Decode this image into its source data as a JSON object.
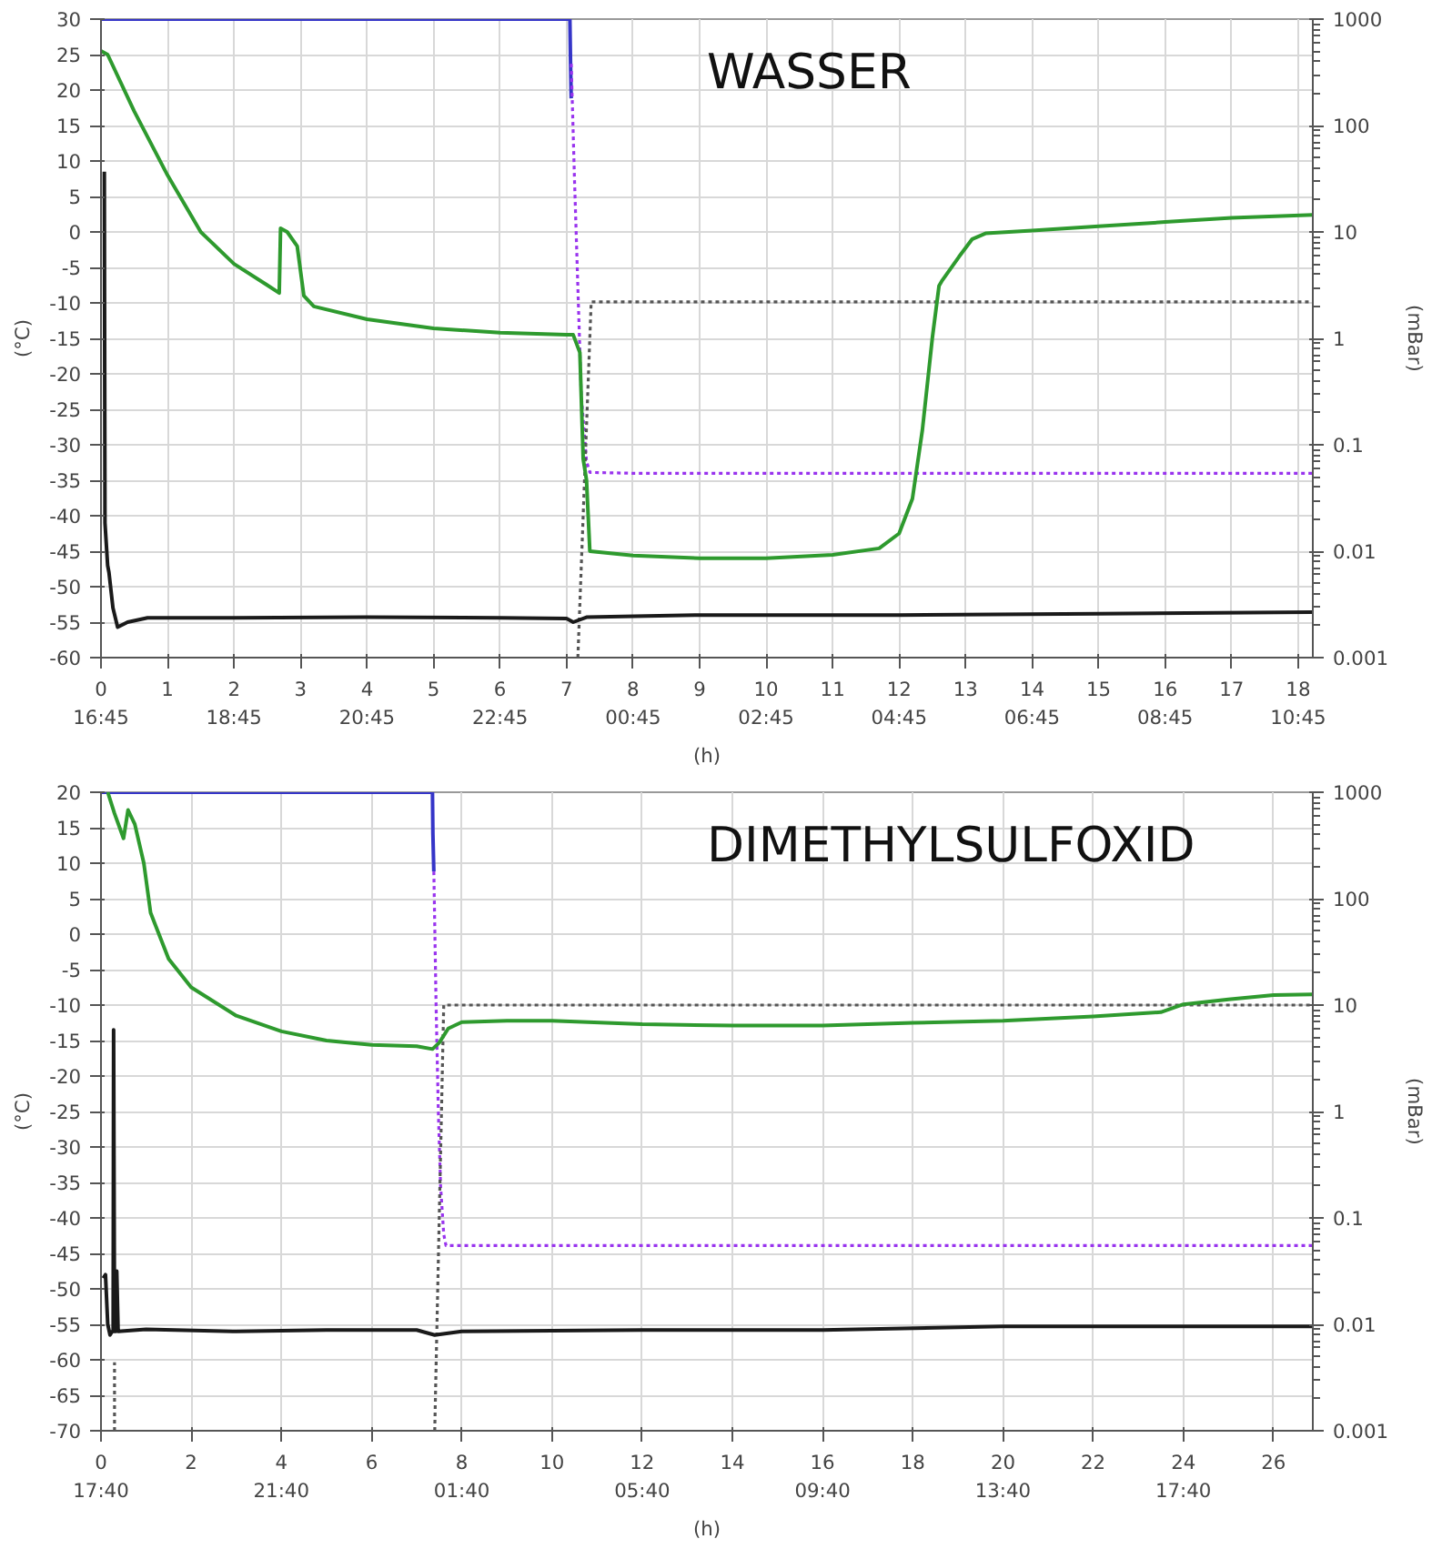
{
  "chart_data": [
    {
      "type": "line",
      "title": "WASSER",
      "ylabel": "(°C)",
      "y2label": "(mBar)",
      "xlabel": "(h)",
      "grid": true,
      "xlim": [
        0,
        18.22
      ],
      "ylim": [
        -60,
        30
      ],
      "y2lim": [
        0.001,
        1000
      ],
      "log": "y2",
      "xticks": [
        {
          "value": 0,
          "label": "0\n16:45"
        },
        1,
        {
          "value": 2,
          "label": "2\n18:45"
        },
        3,
        {
          "value": 4,
          "label": "4\n20:45"
        },
        5,
        {
          "value": 6,
          "label": "6\n22:45"
        },
        7,
        {
          "value": 8,
          "label": "8\n00:45"
        },
        9,
        {
          "value": 10,
          "label": "10\n02:45"
        },
        11,
        {
          "value": 12,
          "label": "12\n04:45"
        },
        13,
        {
          "value": 14,
          "label": "14\n06:45"
        },
        15,
        {
          "value": 16,
          "label": "16\n08:45"
        },
        17,
        {
          "value": 18,
          "label": "18\n10:45"
        }
      ],
      "yticks": [
        -60,
        -55,
        -50,
        -45,
        -40,
        -35,
        -30,
        -25,
        -20,
        -15,
        -10,
        -5,
        0,
        5,
        10,
        15,
        20,
        25,
        30
      ],
      "y2ticks": [
        0.001,
        0.01,
        0.1,
        1,
        10,
        100,
        1000
      ],
      "series": [
        {
          "color": "#3535c8",
          "axis": "y2",
          "line_style": "solid",
          "x": [
            0,
            7.05,
            7.06,
            7.07
          ],
          "values": [
            1000,
            1000,
            380,
            180
          ]
        },
        {
          "color": "#9933ee",
          "axis": "y2",
          "line_style": "dotted",
          "x": [
            7.07,
            7.12,
            7.17,
            7.22,
            7.3,
            7.35,
            8,
            10,
            12,
            14,
            16,
            18.22
          ],
          "values": [
            380,
            30,
            3,
            0.3,
            0.07,
            0.055,
            0.054,
            0.054,
            0.054,
            0.054,
            0.054,
            0.054
          ]
        },
        {
          "color": "#555555",
          "axis": "y2",
          "line_style": "dotted",
          "x": [
            7.17,
            7.37,
            18.22
          ],
          "values": [
            0.001,
            2.2,
            2.2
          ]
        },
        {
          "color": "#1a1a1a",
          "axis": "y",
          "line_style": "solid",
          "x": [
            0.05,
            0.06,
            0.1,
            0.12,
            0.18,
            0.25,
            0.4,
            0.7,
            2,
            4,
            6,
            7,
            7.1,
            7.3,
            9,
            12,
            15,
            18.22
          ],
          "values": [
            8.5,
            -41,
            -47,
            -48,
            -53,
            -55.7,
            -55,
            -54.4,
            -54.4,
            -54.3,
            -54.4,
            -54.5,
            -55,
            -54.3,
            -54,
            -54,
            -53.8,
            -53.6
          ]
        },
        {
          "color": "#2e9a2e",
          "axis": "y",
          "line_style": "solid",
          "x": [
            0,
            0.1,
            0.5,
            1,
            1.5,
            2,
            2.5,
            2.68,
            2.7,
            2.8,
            2.95,
            3.05,
            3.2,
            4,
            5,
            6,
            7,
            7.1,
            7.2,
            7.25,
            7.3,
            7.35,
            8,
            9,
            10,
            11,
            11.7,
            12,
            12.2,
            12.35,
            12.5,
            12.6,
            12.65,
            12.9,
            13.1,
            13.3,
            14,
            15,
            16,
            17,
            18.22
          ],
          "values": [
            25.5,
            25,
            17,
            8,
            0,
            -4.5,
            -7.5,
            -8.6,
            0.5,
            0,
            -2,
            -9,
            -10.5,
            -12.3,
            -13.6,
            -14.2,
            -14.5,
            -14.5,
            -17,
            -32,
            -35,
            -45,
            -45.6,
            -46,
            -46,
            -45.5,
            -44.6,
            -42.5,
            -37.6,
            -27.9,
            -14.9,
            -7.6,
            -6.8,
            -3.5,
            -1,
            -0.2,
            0.2,
            0.8,
            1.4,
            2,
            2.4
          ]
        }
      ]
    },
    {
      "type": "line",
      "title": "DIMETHYLSULFOXID",
      "ylabel": "(°C)",
      "y2label": "(mBar)",
      "xlabel": "(h)",
      "grid": true,
      "xlim": [
        0,
        26.87
      ],
      "ylim": [
        -70,
        20
      ],
      "y2lim": [
        0.001,
        1000
      ],
      "log": "y2",
      "xticks": [
        {
          "value": 0,
          "label": "0\n17:40"
        },
        2,
        {
          "value": 4,
          "label": "4\n21:40"
        },
        6,
        {
          "value": 8,
          "label": "8\n01:40"
        },
        10,
        {
          "value": 12,
          "label": "12\n05:40"
        },
        14,
        {
          "value": 16,
          "label": "16\n09:40"
        },
        18,
        {
          "value": 20,
          "label": "20\n13:40"
        },
        22,
        {
          "value": 24,
          "label": "24\n17:40"
        },
        26
      ],
      "yticks": [
        -70,
        -65,
        -60,
        -55,
        -50,
        -45,
        -40,
        -35,
        -30,
        -25,
        -20,
        -15,
        -10,
        -5,
        0,
        5,
        10,
        15,
        20
      ],
      "y2ticks": [
        0.001,
        0.01,
        0.1,
        1,
        10,
        100,
        1000
      ],
      "series": [
        {
          "color": "#3535c8",
          "axis": "y2",
          "line_style": "solid",
          "x": [
            0,
            7.35,
            7.36,
            7.38
          ],
          "values": [
            1000,
            1000,
            400,
            180
          ]
        },
        {
          "color": "#9933ee",
          "axis": "y2",
          "line_style": "dotted",
          "x": [
            7.38,
            7.43,
            7.48,
            7.53,
            7.6,
            7.65,
            10,
            14,
            18,
            22,
            26.87
          ],
          "values": [
            180,
            10,
            1,
            0.2,
            0.07,
            0.055,
            0.055,
            0.055,
            0.055,
            0.055,
            0.055
          ]
        },
        {
          "color": "#555555",
          "axis": "y2",
          "line_style": "dotted",
          "x": [
            0.3,
            0.3,
            0.31,
            7.4,
            7.6,
            26.87
          ],
          "values": [
            0.001,
            0.0044,
            null,
            0.001,
            10,
            10
          ]
        },
        {
          "color": "#1a1a1a",
          "axis": "y",
          "line_style": "solid",
          "x": [
            0.05,
            0.1,
            0.15,
            0.2,
            0.25,
            0.27,
            0.28,
            0.3,
            0.33,
            0.35,
            0.38,
            1,
            3,
            5,
            7,
            7.4,
            8,
            12,
            16,
            20,
            24,
            26.87
          ],
          "values": [
            -48.5,
            -48,
            -55,
            -56.5,
            -56,
            -56,
            -13.5,
            -56,
            -56,
            -47.5,
            -56,
            -55.7,
            -56,
            -55.8,
            -55.8,
            -56.5,
            -56,
            -55.8,
            -55.8,
            -55.3,
            -55.3,
            -55.3
          ]
        },
        {
          "color": "#2e9a2e",
          "axis": "y",
          "line_style": "solid",
          "x": [
            0.15,
            0.3,
            0.5,
            0.6,
            0.75,
            0.95,
            1.1,
            1.5,
            2,
            3,
            4,
            5,
            6,
            7,
            7.35,
            7.5,
            7.7,
            8,
            9,
            10,
            12,
            14,
            16,
            18,
            20,
            22,
            23.5,
            24,
            25,
            26,
            26.87
          ],
          "values": [
            20,
            17,
            13.5,
            17.5,
            15.5,
            10,
            3,
            -3.5,
            -7.5,
            -11.5,
            -13.7,
            -15,
            -15.6,
            -15.8,
            -16.2,
            -15.3,
            -13.3,
            -12.4,
            -12.2,
            -12.2,
            -12.7,
            -12.9,
            -12.9,
            -12.5,
            -12.2,
            -11.6,
            -11,
            -9.9,
            -9.2,
            -8.6,
            -8.5
          ]
        }
      ]
    }
  ]
}
